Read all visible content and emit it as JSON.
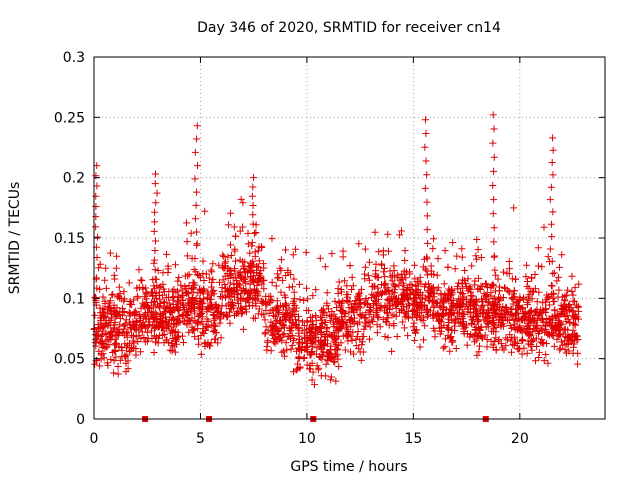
{
  "chart_data": {
    "type": "scatter",
    "title": "Day 346 of 2020, SRMTID for receiver cn14",
    "xlabel": "GPS time / hours",
    "ylabel": "SRMTID / TECUs",
    "xlim": [
      0,
      24
    ],
    "ylim": [
      0,
      0.3
    ],
    "x_ticks": [
      0,
      5,
      10,
      15,
      20
    ],
    "x_tick_labels": [
      "0",
      "5",
      "10",
      "15",
      "20"
    ],
    "y_ticks": [
      0,
      0.05,
      0.1,
      0.15,
      0.2,
      0.25,
      0.3
    ],
    "y_tick_labels": [
      "0",
      "0.05",
      "0.1",
      "0.15",
      "0.2",
      "0.25",
      "0.3"
    ],
    "grid": true,
    "marker": "+",
    "series_color": "#e00000",
    "data_span_hours": [
      0,
      22.8
    ],
    "flag_times": [
      2.4,
      5.4,
      10.3,
      18.4
    ],
    "flag_value": 0,
    "peaks": [
      {
        "x": 0.15,
        "y": 0.21
      },
      {
        "x": 2.9,
        "y": 0.203
      },
      {
        "x": 4.8,
        "y": 0.243
      },
      {
        "x": 7.5,
        "y": 0.2
      },
      {
        "x": 15.6,
        "y": 0.248
      },
      {
        "x": 18.8,
        "y": 0.252
      },
      {
        "x": 21.5,
        "y": 0.233
      }
    ]
  }
}
